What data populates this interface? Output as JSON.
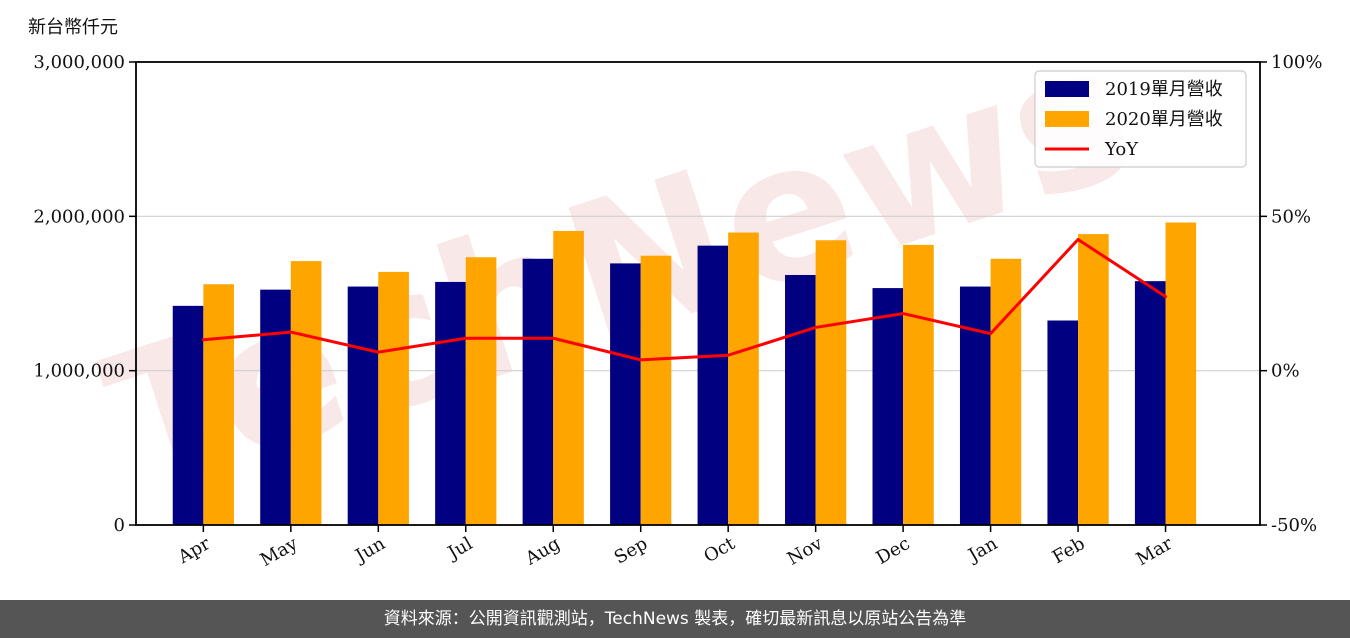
{
  "chart_data": {
    "type": "bar",
    "unit_label": "新台幣仟元",
    "categories": [
      "Apr",
      "May",
      "Jun",
      "Jul",
      "Aug",
      "Sep",
      "Oct",
      "Nov",
      "Dec",
      "Jan",
      "Feb",
      "Mar"
    ],
    "series": [
      {
        "name": "2019單月營收",
        "type": "bar",
        "axis": "left",
        "color": "#000080",
        "values": [
          1420000,
          1525000,
          1545000,
          1575000,
          1725000,
          1695000,
          1810000,
          1620000,
          1535000,
          1545000,
          1325000,
          1580000
        ]
      },
      {
        "name": "2020單月營收",
        "type": "bar",
        "axis": "left",
        "color": "#ffa500",
        "values": [
          1560000,
          1710000,
          1640000,
          1735000,
          1905000,
          1745000,
          1895000,
          1845000,
          1815000,
          1725000,
          1885000,
          1960000
        ]
      },
      {
        "name": "YoY",
        "type": "line",
        "axis": "right",
        "color": "#ff0000",
        "values": [
          10,
          12.5,
          6,
          10.5,
          10.5,
          3.5,
          5,
          14,
          18.5,
          12,
          42.5,
          24
        ]
      }
    ],
    "y_left": {
      "min": 0,
      "max": 3000000,
      "ticks": [
        0,
        1000000,
        2000000,
        3000000
      ],
      "tick_labels": [
        "0",
        "1,000,000",
        "2,000,000",
        "3,000,000"
      ]
    },
    "y_right": {
      "min": -50,
      "max": 100,
      "ticks": [
        -50,
        0,
        50,
        100
      ],
      "tick_labels": [
        "-50%",
        "0%",
        "50%",
        "100%"
      ]
    },
    "grid": "horizontal-major",
    "legend_position": "top-right",
    "watermark": "TechNews"
  },
  "footer": {
    "text": "資料來源：公開資訊觀測站，TechNews 製表，確切最新訊息以原站公告為準"
  }
}
